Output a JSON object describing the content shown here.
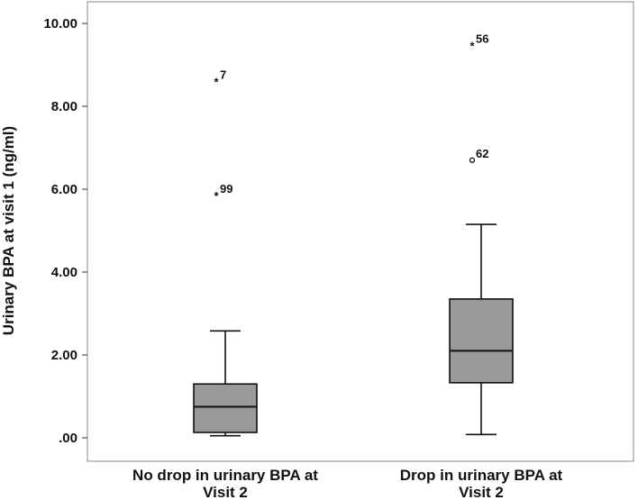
{
  "chart_data": {
    "type": "boxplot",
    "title": "",
    "xlabel": "",
    "ylabel": "Urinary BPA at visit 1 (ng/ml)",
    "ylim": [
      0,
      10
    ],
    "yticks": [
      0,
      2,
      4,
      6,
      8,
      10
    ],
    "ytick_labels": [
      ".00",
      "2.00",
      "4.00",
      "6.00",
      "8.00",
      "10.00"
    ],
    "grid": false,
    "box_color": "#999999",
    "categories": [
      [
        "No drop in urinary BPA at",
        "Visit 2"
      ],
      [
        "Drop in urinary BPA at",
        "Visit 2"
      ]
    ],
    "boxes": [
      {
        "whisker_low": 0.05,
        "q1": 0.13,
        "median": 0.75,
        "q3": 1.3,
        "whisker_high": 2.58
      },
      {
        "whisker_low": 0.08,
        "q1": 1.33,
        "median": 2.1,
        "q3": 3.35,
        "whisker_high": 5.15
      }
    ],
    "outliers": [
      {
        "category": 0,
        "value": 8.6,
        "label": "7",
        "marker": "*"
      },
      {
        "category": 0,
        "value": 5.85,
        "label": "99",
        "marker": "*"
      },
      {
        "category": 1,
        "value": 9.47,
        "label": "56",
        "marker": "*"
      },
      {
        "category": 1,
        "value": 6.7,
        "label": "62",
        "marker": "o"
      }
    ]
  }
}
